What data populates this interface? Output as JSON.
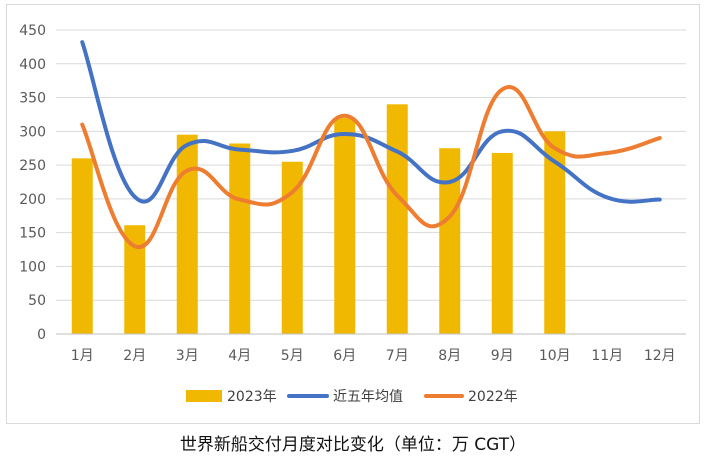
{
  "caption": "世界新船交付月度对比变化（单位：万 CGT）",
  "colors": {
    "bar": "#F0B800",
    "avg": "#4472C4",
    "y2022": "#ED7D31",
    "grid": "#d9d9d9",
    "axis": "#bfbfbf"
  },
  "legend": {
    "bar": "2023年",
    "avg": "近五年均值",
    "y2022": "2022年"
  },
  "chart_data": {
    "type": "bar",
    "title": "",
    "xlabel": "",
    "ylabel": "",
    "categories": [
      "1月",
      "2月",
      "3月",
      "4月",
      "5月",
      "6月",
      "7月",
      "8月",
      "9月",
      "10月",
      "11月",
      "12月"
    ],
    "ylim": [
      0,
      450
    ],
    "yticks": [
      0,
      50,
      100,
      150,
      200,
      250,
      300,
      350,
      400,
      450
    ],
    "grid": true,
    "legend_position": "bottom",
    "series": [
      {
        "name": "2023年",
        "type": "bar",
        "values": [
          260,
          161,
          295,
          282,
          255,
          320,
          340,
          275,
          268,
          300,
          null,
          null
        ]
      },
      {
        "name": "近五年均值",
        "type": "line",
        "smooth": true,
        "values": [
          432,
          203,
          280,
          273,
          271,
          296,
          270,
          225,
          300,
          255,
          202,
          199
        ]
      },
      {
        "name": "2022年",
        "type": "line",
        "smooth": true,
        "values": [
          310,
          130,
          242,
          199,
          210,
          323,
          205,
          174,
          362,
          275,
          268,
          290
        ]
      }
    ]
  }
}
